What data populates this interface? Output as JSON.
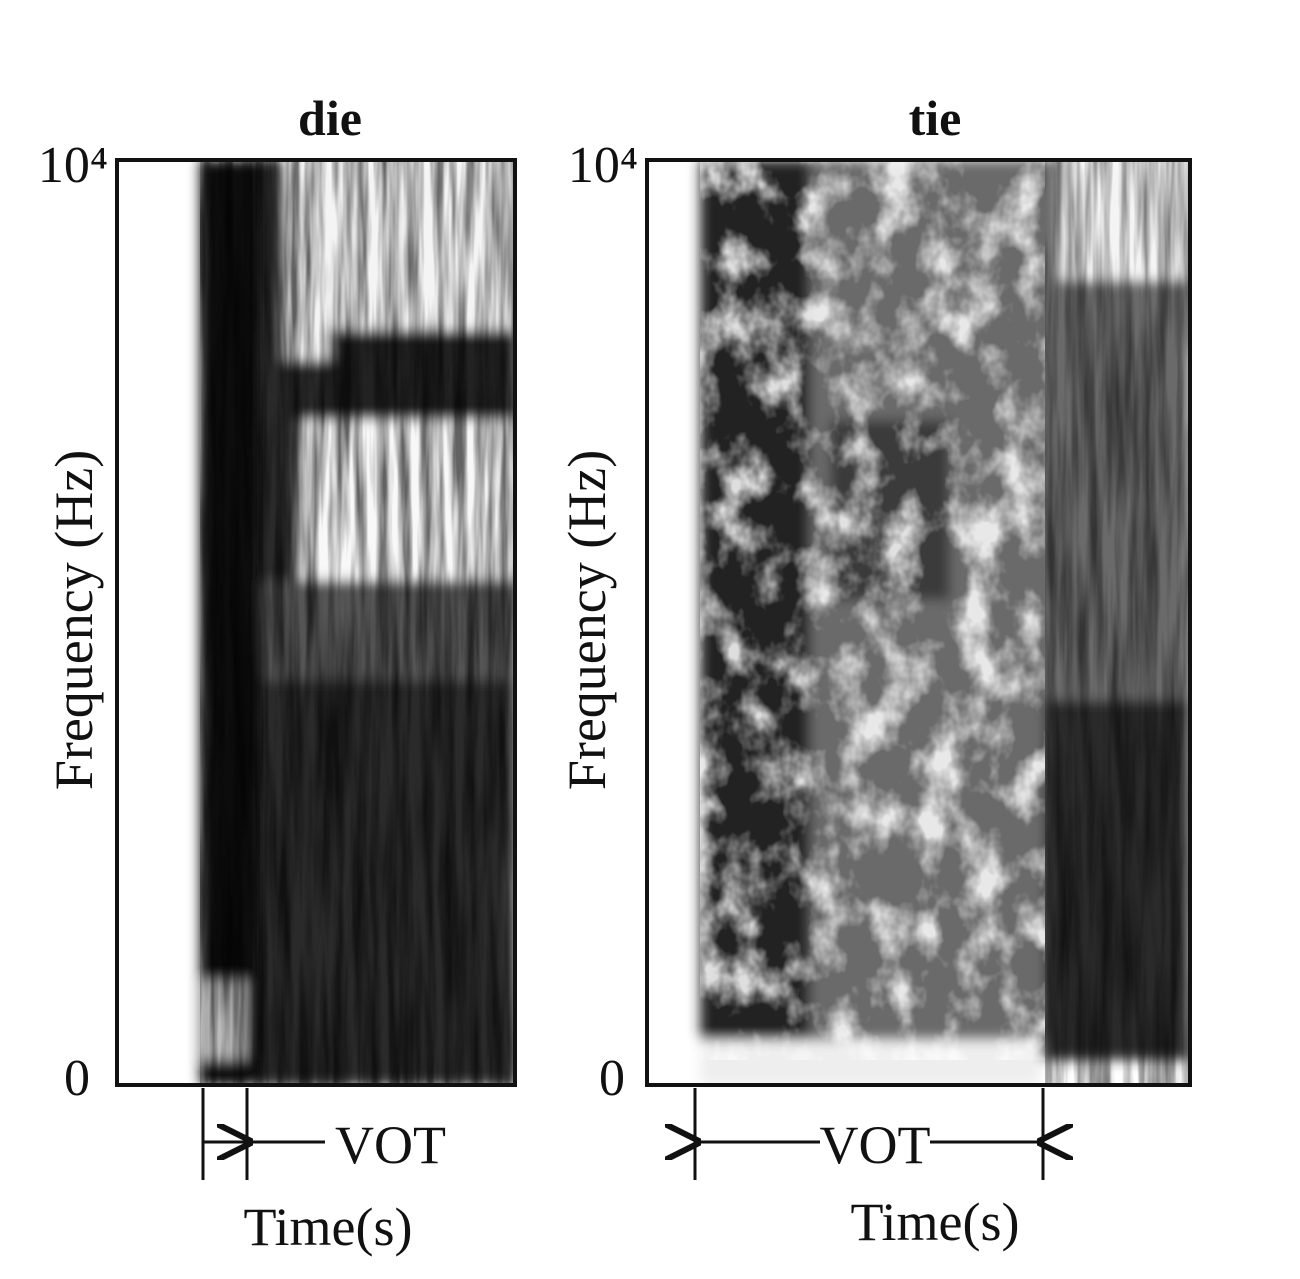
{
  "panels": [
    {
      "title": "die",
      "y_axis": {
        "label": "Frequency (Hz)",
        "ticks": [
          "10⁴",
          "0"
        ]
      },
      "x_axis": {
        "label": "Time(s)"
      },
      "annotation": "VOT"
    },
    {
      "title": "tie",
      "y_axis": {
        "label": "Frequency (Hz)",
        "ticks": [
          "10⁴",
          "0"
        ]
      },
      "x_axis": {
        "label": "Time(s)"
      },
      "annotation": "VOT"
    }
  ]
}
